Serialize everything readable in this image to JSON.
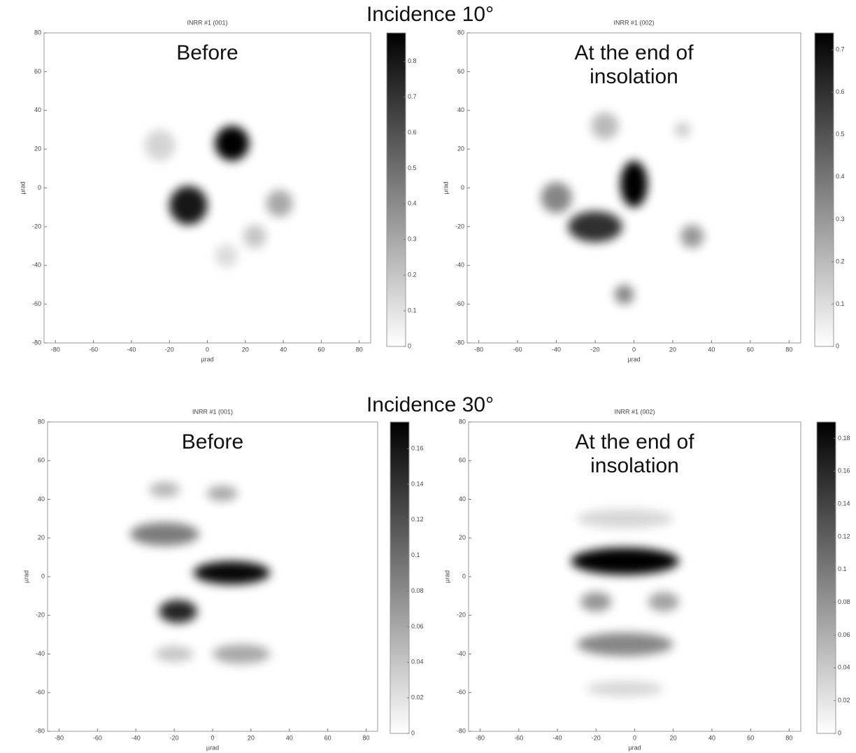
{
  "headings": [
    "Incidence 10°",
    "Incidence 30°"
  ],
  "chart_data": [
    {
      "type": "heatmap",
      "title": "INRR #1 (001)",
      "label": [
        "Before"
      ],
      "xlabel": "µrad",
      "ylabel": "µrad",
      "color": "#000000",
      "xlim": [
        -86,
        86
      ],
      "ylim": [
        -80,
        80
      ],
      "xticks": [
        -80,
        -60,
        -40,
        -20,
        0,
        20,
        40,
        60,
        80
      ],
      "yticks": [
        -80,
        -60,
        -40,
        -20,
        0,
        20,
        40,
        60,
        80
      ],
      "clim": [
        0,
        0.88
      ],
      "cticks": [
        0,
        0.1,
        0.2,
        0.3,
        0.4,
        0.5,
        0.6,
        0.7,
        0.8
      ],
      "spots": [
        {
          "x": 13,
          "y": 23,
          "rx": 9,
          "ry": 9,
          "value": 0.88
        },
        {
          "x": -10,
          "y": -9,
          "rx": 10,
          "ry": 10,
          "value": 0.8
        },
        {
          "x": 38,
          "y": -8,
          "rx": 7,
          "ry": 7,
          "value": 0.3
        },
        {
          "x": 25,
          "y": -25,
          "rx": 6,
          "ry": 6,
          "value": 0.2
        },
        {
          "x": -25,
          "y": 22,
          "rx": 8,
          "ry": 8,
          "value": 0.15
        },
        {
          "x": 10,
          "y": -35,
          "rx": 6,
          "ry": 6,
          "value": 0.12
        }
      ]
    },
    {
      "type": "heatmap",
      "title": "INRR #1 (002)",
      "label": [
        "At the end of",
        "insolation"
      ],
      "xlabel": "µrad",
      "ylabel": "µrad",
      "color": "#000000",
      "xlim": [
        -86,
        86
      ],
      "ylim": [
        -80,
        80
      ],
      "xticks": [
        -80,
        -60,
        -40,
        -20,
        0,
        20,
        40,
        60,
        80
      ],
      "yticks": [
        -80,
        -60,
        -40,
        -20,
        0,
        20,
        40,
        60,
        80
      ],
      "clim": [
        0,
        0.74
      ],
      "cticks": [
        0,
        0.1,
        0.2,
        0.3,
        0.4,
        0.5,
        0.6,
        0.7
      ],
      "spots": [
        {
          "x": 0,
          "y": 2,
          "rx": 7,
          "ry": 12,
          "value": 0.74
        },
        {
          "x": -20,
          "y": -20,
          "rx": 14,
          "ry": 8,
          "value": 0.6
        },
        {
          "x": -40,
          "y": -5,
          "rx": 8,
          "ry": 8,
          "value": 0.35
        },
        {
          "x": -5,
          "y": -55,
          "rx": 5,
          "ry": 5,
          "value": 0.35
        },
        {
          "x": 30,
          "y": -25,
          "rx": 6,
          "ry": 6,
          "value": 0.3
        },
        {
          "x": -15,
          "y": 32,
          "rx": 7,
          "ry": 7,
          "value": 0.2
        },
        {
          "x": 25,
          "y": 30,
          "rx": 4,
          "ry": 4,
          "value": 0.15
        }
      ]
    },
    {
      "type": "heatmap",
      "title": "INRR #1 (001)",
      "label": [
        "Before"
      ],
      "xlabel": "µrad",
      "ylabel": "µrad",
      "color": "#000000",
      "xlim": [
        -86,
        86
      ],
      "ylim": [
        -80,
        80
      ],
      "xticks": [
        -80,
        -60,
        -40,
        -20,
        0,
        20,
        40,
        60,
        80
      ],
      "yticks": [
        -80,
        -60,
        -40,
        -20,
        0,
        20,
        40,
        60,
        80
      ],
      "clim": [
        0,
        0.175
      ],
      "cticks": [
        0,
        0.02,
        0.04,
        0.06,
        0.08,
        0.1,
        0.12,
        0.14,
        0.16
      ],
      "spots": [
        {
          "x": 10,
          "y": 2,
          "rx": 20,
          "ry": 6,
          "value": 0.17
        },
        {
          "x": -18,
          "y": -18,
          "rx": 10,
          "ry": 6,
          "value": 0.15
        },
        {
          "x": -25,
          "y": 22,
          "rx": 18,
          "ry": 6,
          "value": 0.09
        },
        {
          "x": 5,
          "y": 43,
          "rx": 8,
          "ry": 4,
          "value": 0.06
        },
        {
          "x": -25,
          "y": 45,
          "rx": 8,
          "ry": 4,
          "value": 0.05
        },
        {
          "x": 15,
          "y": -40,
          "rx": 15,
          "ry": 5,
          "value": 0.06
        },
        {
          "x": -20,
          "y": -40,
          "rx": 10,
          "ry": 4,
          "value": 0.04
        }
      ]
    },
    {
      "type": "heatmap",
      "title": "INRR #1 (002)",
      "label": [
        "At the end of",
        "insolation"
      ],
      "xlabel": "µrad",
      "ylabel": "µrad",
      "color": "#000000",
      "xlim": [
        -86,
        86
      ],
      "ylim": [
        -80,
        80
      ],
      "xticks": [
        -80,
        -60,
        -40,
        -20,
        0,
        20,
        40,
        60,
        80
      ],
      "yticks": [
        -80,
        -60,
        -40,
        -20,
        0,
        20,
        40,
        60,
        80
      ],
      "clim": [
        0,
        0.19
      ],
      "cticks": [
        0,
        0.02,
        0.04,
        0.06,
        0.08,
        0.1,
        0.12,
        0.14,
        0.16,
        0.18
      ],
      "spots": [
        {
          "x": -5,
          "y": 8,
          "rx": 28,
          "ry": 7,
          "value": 0.19
        },
        {
          "x": -20,
          "y": -13,
          "rx": 8,
          "ry": 5,
          "value": 0.08
        },
        {
          "x": 15,
          "y": -13,
          "rx": 8,
          "ry": 5,
          "value": 0.07
        },
        {
          "x": -5,
          "y": -35,
          "rx": 25,
          "ry": 6,
          "value": 0.09
        },
        {
          "x": -5,
          "y": -58,
          "rx": 20,
          "ry": 4,
          "value": 0.03
        },
        {
          "x": -5,
          "y": 30,
          "rx": 25,
          "ry": 5,
          "value": 0.03
        }
      ]
    }
  ]
}
